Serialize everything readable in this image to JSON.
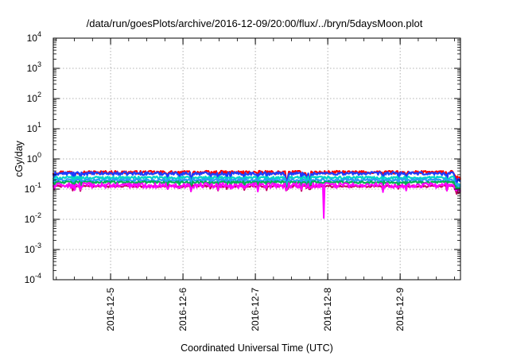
{
  "chart_data": {
    "type": "line",
    "title": "/data/run/goesPlots/archive/2016-12-09/20:00/flux/../bryn/5daysMoon.plot",
    "xlabel": "Coordinated Universal Time (UTC)",
    "ylabel": "cGy/day",
    "x_range": [
      "2016-12-04 05:00",
      "2016-12-09 20:00"
    ],
    "x_ticks": [
      "2016-12-5",
      "2016-12-6",
      "2016-12-7",
      "2016-12-8",
      "2016-12-9"
    ],
    "y_scale": "log",
    "ylim": [
      0.0001,
      10000
    ],
    "y_ticks": [
      {
        "base": "10",
        "exp": "4"
      },
      {
        "base": "10",
        "exp": "3"
      },
      {
        "base": "10",
        "exp": "2"
      },
      {
        "base": "10",
        "exp": "1"
      },
      {
        "base": "10",
        "exp": "0"
      },
      {
        "base": "10",
        "exp": "-1"
      },
      {
        "base": "10",
        "exp": "-2"
      },
      {
        "base": "10",
        "exp": "-3"
      },
      {
        "base": "10",
        "exp": "-4"
      }
    ],
    "grid": true,
    "series": [
      {
        "color": "#ff0000",
        "level": 0.36,
        "jitter": 0.12,
        "dips": 0.65
      },
      {
        "color": "#1e3cff",
        "level": 0.33,
        "jitter": 0.12,
        "dips": 0.65
      },
      {
        "color": "#00d6c8",
        "level": 0.24,
        "jitter": 0.1,
        "dips": 0.55
      },
      {
        "color": "#2a9df4",
        "level": 0.2,
        "jitter": 0.1,
        "dips": 0.5
      },
      {
        "color": "#00b050",
        "level": 0.17,
        "jitter": 0.08,
        "dips": 0.45
      },
      {
        "color": "#c00060",
        "level": 0.125,
        "jitter": 0.08,
        "dips": 0.4
      },
      {
        "color": "#ff00ff",
        "level": 0.135,
        "jitter": 0.2,
        "dips": 0.4,
        "min_value": 0.011
      }
    ]
  }
}
